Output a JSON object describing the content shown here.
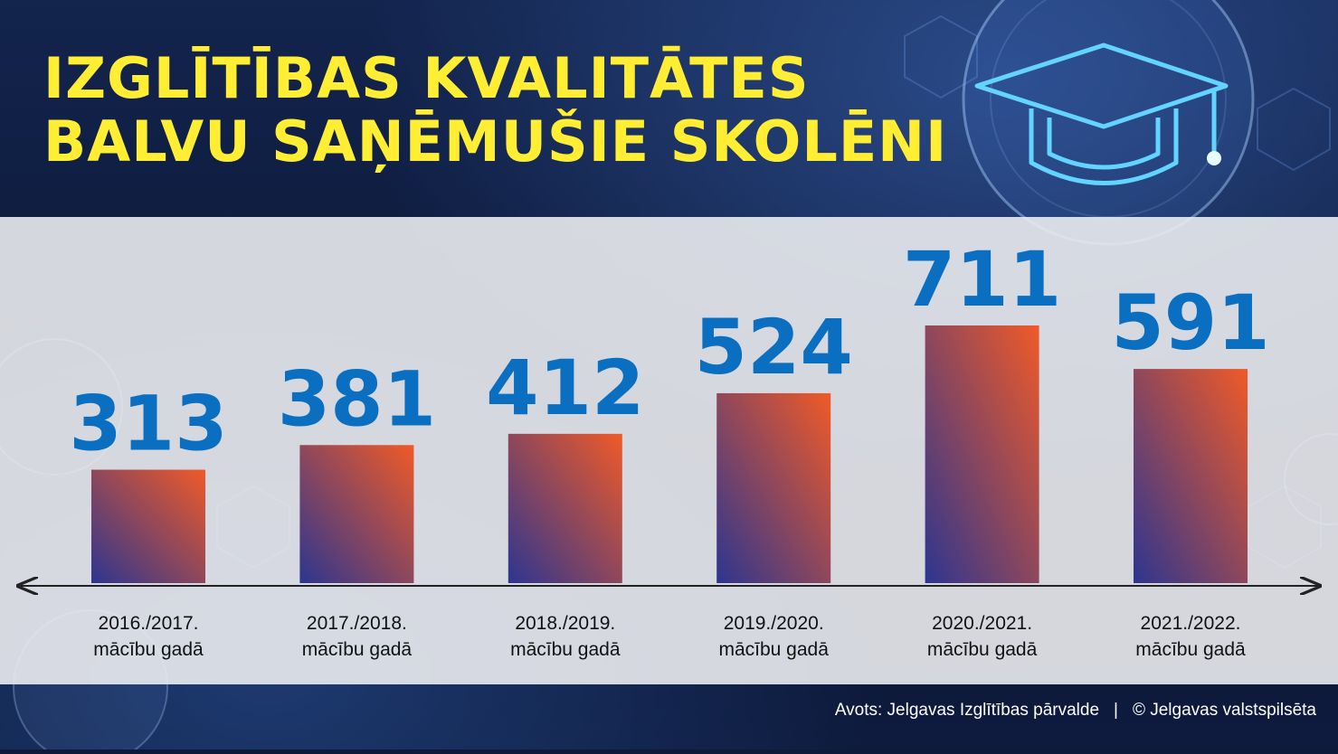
{
  "title_lines": [
    "IZGLĪTĪBAS KVALITĀTES",
    "BALVU SAŅĒMUŠIE SKOLĒNI"
  ],
  "footer": {
    "source": "Avots: Jelgavas Izglītības pārvalde",
    "separator": "|",
    "copyright": "© Jelgavas valstspilsēta"
  },
  "colors": {
    "title": "#ffee33",
    "value_label": "#0a6fc0",
    "bar_top": "#f05a28",
    "bar_bottom": "#2d3590",
    "axis": "#222222"
  },
  "chart_data": {
    "type": "bar",
    "categories": [
      [
        "2016./2017.",
        "mācību gadā"
      ],
      [
        "2017./2018.",
        "mācību gadā"
      ],
      [
        "2018./2019.",
        "mācību gadā"
      ],
      [
        "2019./2020.",
        "mācību gadā"
      ],
      [
        "2020./2021.",
        "mācību gadā"
      ],
      [
        "2021./2022.",
        "mācību gadā"
      ]
    ],
    "values": [
      313,
      381,
      412,
      524,
      711,
      591
    ],
    "ylim": [
      0,
      711
    ],
    "grid": false,
    "legend": "none",
    "data_labels": true
  }
}
